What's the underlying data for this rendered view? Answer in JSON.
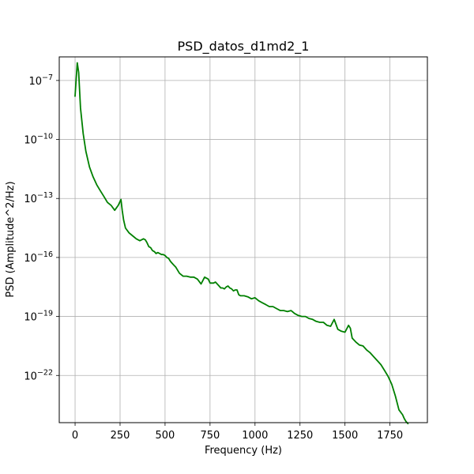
{
  "chart_data": {
    "type": "line",
    "title": "PSD_datos_d1md2_1",
    "xlabel": "Frequency (Hz)",
    "ylabel": "PSD (Amplitude^2/Hz)",
    "xlim": [
      -88,
      1958
    ],
    "xticks": [
      {
        "value": 0,
        "label": "0"
      },
      {
        "value": 250,
        "label": "250"
      },
      {
        "value": 500,
        "label": "500"
      },
      {
        "value": 750,
        "label": "750"
      },
      {
        "value": 1000,
        "label": "1000"
      },
      {
        "value": 1250,
        "label": "1250"
      },
      {
        "value": 1500,
        "label": "1500"
      },
      {
        "value": 1750,
        "label": "1750"
      }
    ],
    "yscale": "log",
    "ylim_log10": [
      -24.4,
      -5.8
    ],
    "yticks": [
      {
        "exp": -7,
        "base": "10",
        "sup": "−7"
      },
      {
        "exp": -10,
        "base": "10",
        "sup": "−10"
      },
      {
        "exp": -13,
        "base": "10",
        "sup": "−13"
      },
      {
        "exp": -16,
        "base": "10",
        "sup": "−16"
      },
      {
        "exp": -19,
        "base": "10",
        "sup": "−19"
      },
      {
        "exp": -22,
        "base": "10",
        "sup": "−22"
      }
    ],
    "grid": true,
    "line_color": "#008000",
    "series": [
      {
        "x": [
          0,
          12,
          20,
          30,
          45,
          60,
          80,
          100,
          120,
          140,
          160,
          180,
          200,
          220,
          240,
          255,
          262,
          270,
          280,
          300,
          320,
          340,
          360,
          380,
          390,
          400,
          410,
          420,
          430,
          440,
          450,
          460,
          470,
          480,
          490,
          500,
          510,
          520,
          530,
          540,
          550,
          560,
          580,
          600,
          620,
          640,
          660,
          680,
          700,
          720,
          740,
          750,
          760,
          770,
          780,
          790,
          800,
          810,
          820,
          830,
          840,
          850,
          860,
          870,
          880,
          890,
          900,
          910,
          920,
          930,
          940,
          960,
          980,
          1000,
          1020,
          1040,
          1060,
          1080,
          1100,
          1120,
          1140,
          1160,
          1180,
          1200,
          1220,
          1240,
          1260,
          1280,
          1300,
          1320,
          1340,
          1360,
          1380,
          1400,
          1420,
          1440,
          1450,
          1460,
          1480,
          1500,
          1520,
          1530,
          1540,
          1560,
          1580,
          1600,
          1620,
          1640,
          1660,
          1680,
          1700,
          1720,
          1740,
          1760,
          1780,
          1800,
          1820,
          1830,
          1840,
          1850
        ],
        "log10_y": [
          -7.8,
          -6.1,
          -6.6,
          -8.4,
          -9.7,
          -10.6,
          -11.4,
          -11.9,
          -12.3,
          -12.6,
          -12.9,
          -13.2,
          -13.35,
          -13.6,
          -13.35,
          -13.05,
          -13.6,
          -14.1,
          -14.5,
          -14.75,
          -14.9,
          -15.05,
          -15.15,
          -15.05,
          -15.1,
          -15.25,
          -15.45,
          -15.5,
          -15.65,
          -15.7,
          -15.8,
          -15.75,
          -15.8,
          -15.85,
          -15.85,
          -15.9,
          -16.0,
          -16.05,
          -16.2,
          -16.3,
          -16.4,
          -16.5,
          -16.8,
          -16.95,
          -16.95,
          -17.0,
          -17.0,
          -17.1,
          -17.35,
          -17.0,
          -17.1,
          -17.3,
          -17.3,
          -17.3,
          -17.25,
          -17.35,
          -17.45,
          -17.55,
          -17.55,
          -17.6,
          -17.5,
          -17.45,
          -17.55,
          -17.6,
          -17.7,
          -17.65,
          -17.65,
          -17.9,
          -17.95,
          -17.95,
          -17.95,
          -18.0,
          -18.1,
          -18.05,
          -18.2,
          -18.3,
          -18.4,
          -18.5,
          -18.5,
          -18.6,
          -18.7,
          -18.7,
          -18.75,
          -18.7,
          -18.85,
          -18.95,
          -19.0,
          -19.0,
          -19.1,
          -19.15,
          -19.25,
          -19.3,
          -19.3,
          -19.45,
          -19.5,
          -19.15,
          -19.4,
          -19.65,
          -19.75,
          -19.8,
          -19.45,
          -19.6,
          -20.1,
          -20.3,
          -20.45,
          -20.5,
          -20.7,
          -20.85,
          -21.05,
          -21.25,
          -21.45,
          -21.75,
          -22.05,
          -22.45,
          -23.05,
          -23.75,
          -24.0,
          -24.2,
          -24.35,
          -24.45
        ]
      }
    ]
  }
}
